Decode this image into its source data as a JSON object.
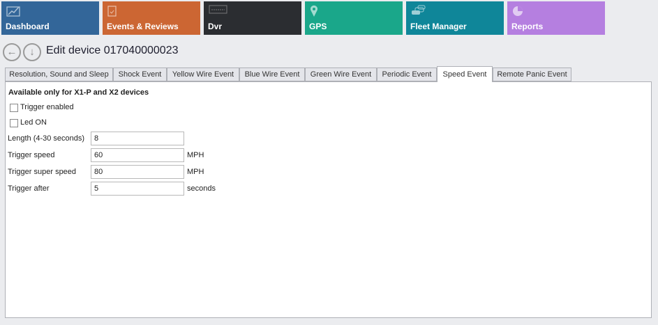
{
  "nav": [
    {
      "label": "Dashboard",
      "icon": "chart-icon",
      "color": "#336699"
    },
    {
      "label": "Events & Reviews",
      "icon": "clipboard-icon",
      "color": "#cc6633"
    },
    {
      "label": "Dvr",
      "icon": "dvr-logo-icon",
      "color": "#2b2d31"
    },
    {
      "label": "GPS",
      "icon": "map-pin-icon",
      "color": "#1aa78a"
    },
    {
      "label": "Fleet Manager",
      "icon": "cars-icon",
      "color": "#0f8699"
    },
    {
      "label": "Reports",
      "icon": "pie-chart-icon",
      "color": "#b57fe0"
    }
  ],
  "header": {
    "title": "Edit device 017040000023"
  },
  "tabs": [
    "Resolution, Sound and Sleep",
    "Shock Event",
    "Yellow Wire Event",
    "Blue Wire Event",
    "Green Wire Event",
    "Periodic Event",
    "Speed Event",
    "Remote Panic Event"
  ],
  "active_tab": "Speed Event",
  "form": {
    "heading": "Available only for X1-P and X2 devices",
    "trigger_enabled": {
      "label": "Trigger enabled",
      "checked": false
    },
    "led_on": {
      "label": "Led ON",
      "checked": false
    },
    "length": {
      "label": "Length (4-30 seconds)",
      "value": "8"
    },
    "trigger_speed": {
      "label": "Trigger speed",
      "value": "60",
      "unit": "MPH"
    },
    "trigger_super_speed": {
      "label": "Trigger super speed",
      "value": "80",
      "unit": "MPH"
    },
    "trigger_after": {
      "label": "Trigger after",
      "value": "5",
      "unit": "seconds"
    }
  }
}
